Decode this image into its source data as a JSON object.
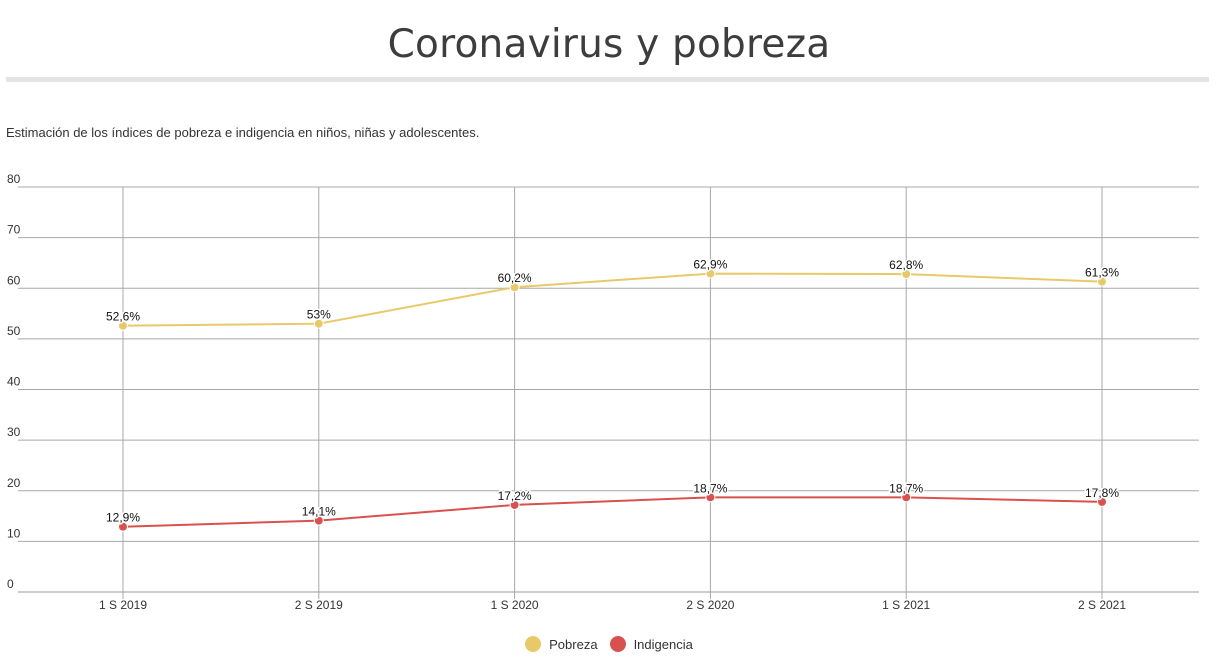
{
  "header": {
    "title": "Coronavirus y pobreza",
    "subtitle": "Estimación de los índices de pobreza e indigencia en niños, niñas y adolescentes."
  },
  "chart_data": {
    "type": "line",
    "title": "Coronavirus y pobreza",
    "subtitle": "Estimación de los índices de pobreza e indigencia en niños, niñas y adolescentes.",
    "xlabel": "",
    "ylabel": "",
    "categories": [
      "1 S 2019",
      "2 S 2019",
      "1 S 2020",
      "2 S 2020",
      "1 S 2021",
      "2 S 2021"
    ],
    "ylim": [
      0,
      80
    ],
    "yticks": [
      0,
      10,
      20,
      30,
      40,
      50,
      60,
      70,
      80
    ],
    "grid": true,
    "legend_position": "bottom-center",
    "series": [
      {
        "name": "Pobreza",
        "color": "#e8c96a",
        "values": [
          52.6,
          53,
          60.2,
          62.9,
          62.8,
          61.3
        ],
        "labels": [
          "52,6%",
          "53%",
          "60,2%",
          "62,9%",
          "62,8%",
          "61,3%"
        ]
      },
      {
        "name": "Indigencia",
        "color": "#d9514e",
        "values": [
          12.9,
          14.1,
          17.2,
          18.7,
          18.7,
          17.8
        ],
        "labels": [
          "12,9%",
          "14,1%",
          "17,2%",
          "18,7%",
          "18,7%",
          "17,8%"
        ]
      }
    ]
  }
}
